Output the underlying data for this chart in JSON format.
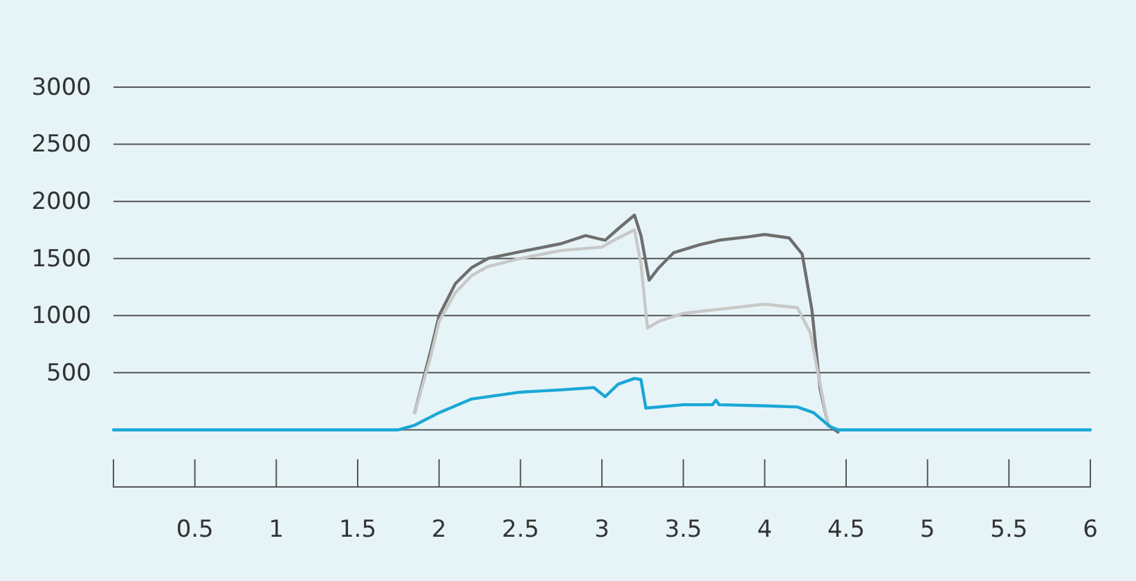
{
  "chart_data": {
    "type": "line",
    "xlim": [
      0,
      6
    ],
    "xticks": [
      0.5,
      1,
      1.5,
      2,
      2.5,
      3,
      3.5,
      4,
      4.5,
      5,
      5.5,
      6
    ],
    "ylim": [
      -500,
      3000
    ],
    "yticks": [
      {
        "value": 0,
        "label": null
      },
      500,
      1000,
      1500,
      2000,
      2500,
      3000
    ],
    "grid": "y",
    "marker": "none",
    "line_style": "solid",
    "series": [
      {
        "color": "#6e6e6e",
        "x": [
          1.85,
          1.95,
          2.0,
          2.1,
          2.2,
          2.3,
          2.5,
          2.75,
          2.9,
          3.02,
          3.1,
          3.2,
          3.24,
          3.29,
          3.35,
          3.44,
          3.6,
          3.72,
          3.9,
          4.0,
          4.15,
          4.23,
          4.29,
          4.34,
          4.39,
          4.45
        ],
        "values": [
          150,
          700,
          1000,
          1280,
          1420,
          1500,
          1560,
          1630,
          1700,
          1660,
          1760,
          1880,
          1700,
          1310,
          1420,
          1550,
          1620,
          1660,
          1690,
          1710,
          1680,
          1540,
          1050,
          360,
          40,
          -20
        ]
      },
      {
        "color": "#c8c8c8",
        "x": [
          1.85,
          1.95,
          2.0,
          2.1,
          2.2,
          2.3,
          2.5,
          2.75,
          3.0,
          3.1,
          3.2,
          3.24,
          3.28,
          3.35,
          3.5,
          3.75,
          4.0,
          4.2,
          4.28,
          4.34,
          4.39
        ],
        "values": [
          150,
          650,
          950,
          1200,
          1350,
          1430,
          1500,
          1570,
          1600,
          1680,
          1750,
          1450,
          890,
          950,
          1020,
          1060,
          1100,
          1070,
          850,
          400,
          30
        ]
      },
      {
        "color": "#1aa7d6",
        "x": [
          0,
          0.5,
          1,
          1.5,
          1.75,
          1.85,
          2.0,
          2.2,
          2.5,
          2.75,
          2.95,
          3.02,
          3.1,
          3.2,
          3.24,
          3.27,
          3.5,
          3.68,
          3.7,
          3.72,
          4.0,
          4.2,
          4.3,
          4.4,
          4.45,
          5,
          6
        ],
        "values": [
          0,
          0,
          0,
          0,
          0,
          40,
          150,
          270,
          330,
          350,
          370,
          290,
          400,
          450,
          440,
          190,
          220,
          220,
          260,
          220,
          210,
          200,
          150,
          30,
          0,
          0,
          0
        ]
      }
    ]
  }
}
